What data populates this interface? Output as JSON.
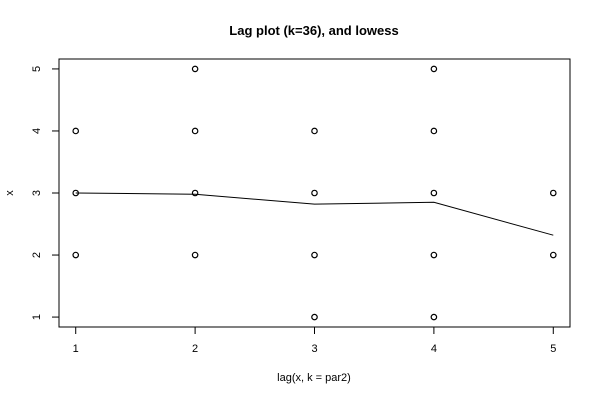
{
  "chart_data": {
    "type": "scatter",
    "title": "Lag plot (k=36), and lowess",
    "xlabel": "lag(x, k = par2)",
    "ylabel": "x",
    "xlim": [
      0.86,
      5.14
    ],
    "ylim": [
      0.84,
      5.16
    ],
    "xticks": [
      "1",
      "2",
      "3",
      "4",
      "5"
    ],
    "yticks": [
      "1",
      "2",
      "3",
      "4",
      "5"
    ],
    "grid": false,
    "series": [
      {
        "type": "scatter",
        "marker": "open-circle",
        "points": [
          {
            "x": 1,
            "y": 2
          },
          {
            "x": 1,
            "y": 3
          },
          {
            "x": 1,
            "y": 4
          },
          {
            "x": 2,
            "y": 2
          },
          {
            "x": 2,
            "y": 3
          },
          {
            "x": 2,
            "y": 4
          },
          {
            "x": 2,
            "y": 5
          },
          {
            "x": 3,
            "y": 1
          },
          {
            "x": 3,
            "y": 2
          },
          {
            "x": 3,
            "y": 3
          },
          {
            "x": 3,
            "y": 4
          },
          {
            "x": 4,
            "y": 1
          },
          {
            "x": 4,
            "y": 2
          },
          {
            "x": 4,
            "y": 3
          },
          {
            "x": 4,
            "y": 4
          },
          {
            "x": 4,
            "y": 5
          },
          {
            "x": 5,
            "y": 2
          },
          {
            "x": 5,
            "y": 3
          }
        ]
      },
      {
        "type": "line",
        "x": [
          1,
          2,
          3,
          4,
          5
        ],
        "y": [
          3.0,
          2.98,
          2.82,
          2.85,
          2.32
        ]
      }
    ]
  }
}
